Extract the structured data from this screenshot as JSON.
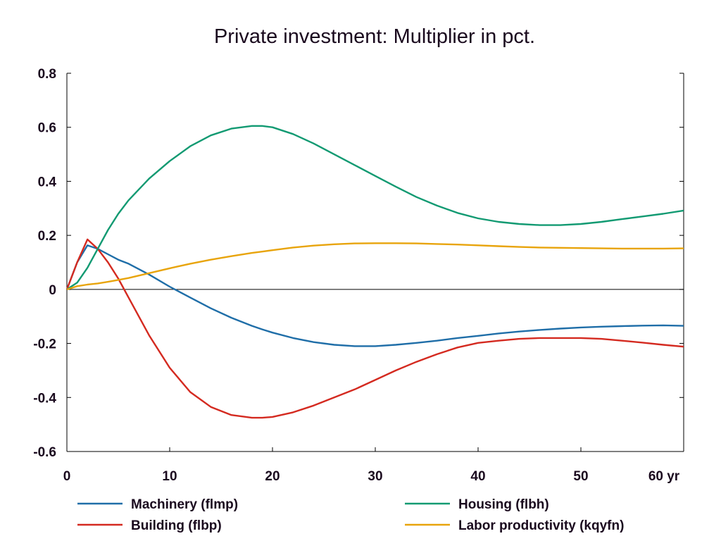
{
  "chart_data": {
    "type": "line",
    "title": "Private investment: Multiplier in pct.",
    "xlabel": "",
    "ylabel": "",
    "xlim": [
      0,
      60
    ],
    "ylim": [
      -0.6,
      0.8
    ],
    "x_ticks": [
      "0",
      "10",
      "20",
      "30",
      "40",
      "50",
      "60 yr"
    ],
    "y_ticks": [
      "0.8",
      "0.6",
      "0.4",
      "0.2",
      "0",
      "-0.2",
      "-0.4",
      "-0.6"
    ],
    "grid": false,
    "legend_position": "bottom",
    "x": [
      0,
      1,
      2,
      3,
      4,
      5,
      6,
      8,
      10,
      12,
      14,
      16,
      18,
      19,
      20,
      22,
      24,
      26,
      28,
      30,
      32,
      34,
      36,
      38,
      40,
      42,
      44,
      46,
      48,
      50,
      52,
      54,
      56,
      58,
      60
    ],
    "series": [
      {
        "name": "Machinery (flmp)",
        "color": "#1f6ea8",
        "values": [
          0,
          0.1,
          0.163,
          0.15,
          0.13,
          0.11,
          0.095,
          0.055,
          0.01,
          -0.03,
          -0.07,
          -0.105,
          -0.135,
          -0.148,
          -0.16,
          -0.18,
          -0.195,
          -0.205,
          -0.21,
          -0.21,
          -0.205,
          -0.198,
          -0.19,
          -0.18,
          -0.172,
          -0.163,
          -0.156,
          -0.15,
          -0.145,
          -0.141,
          -0.138,
          -0.136,
          -0.134,
          -0.133,
          -0.135
        ]
      },
      {
        "name": "Building (flbp)",
        "color": "#d42a20",
        "values": [
          0,
          0.1,
          0.185,
          0.15,
          0.1,
          0.04,
          -0.03,
          -0.17,
          -0.29,
          -0.38,
          -0.435,
          -0.465,
          -0.475,
          -0.475,
          -0.472,
          -0.455,
          -0.43,
          -0.4,
          -0.37,
          -0.335,
          -0.3,
          -0.268,
          -0.24,
          -0.215,
          -0.198,
          -0.19,
          -0.183,
          -0.18,
          -0.18,
          -0.18,
          -0.183,
          -0.19,
          -0.197,
          -0.205,
          -0.212
        ]
      },
      {
        "name": "Housing (flbh)",
        "color": "#129a72",
        "values": [
          0,
          0.025,
          0.08,
          0.15,
          0.22,
          0.28,
          0.33,
          0.41,
          0.475,
          0.53,
          0.57,
          0.595,
          0.605,
          0.605,
          0.6,
          0.575,
          0.54,
          0.5,
          0.46,
          0.42,
          0.38,
          0.342,
          0.31,
          0.283,
          0.263,
          0.25,
          0.242,
          0.238,
          0.238,
          0.242,
          0.25,
          0.26,
          0.27,
          0.28,
          0.292
        ]
      },
      {
        "name": "Labor productivity (kqyfn)",
        "color": "#e8a40c",
        "values": [
          0,
          0.012,
          0.018,
          0.022,
          0.028,
          0.035,
          0.042,
          0.06,
          0.078,
          0.095,
          0.11,
          0.123,
          0.135,
          0.14,
          0.145,
          0.155,
          0.162,
          0.167,
          0.17,
          0.171,
          0.171,
          0.17,
          0.168,
          0.166,
          0.163,
          0.16,
          0.157,
          0.155,
          0.154,
          0.153,
          0.152,
          0.151,
          0.151,
          0.151,
          0.152
        ]
      }
    ]
  }
}
